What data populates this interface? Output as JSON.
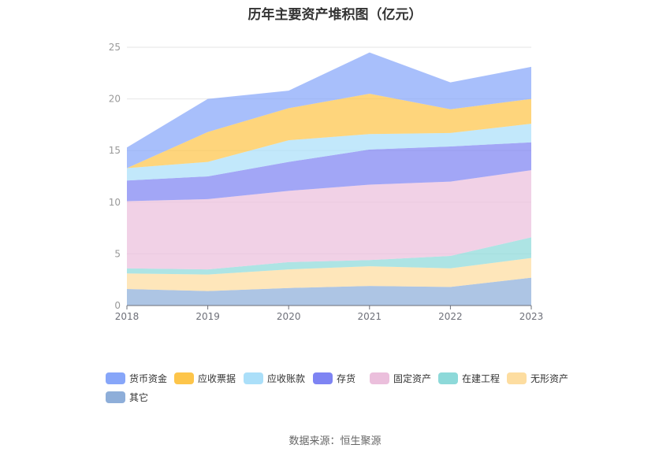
{
  "title": "历年主要资产堆积图（亿元）",
  "source": "数据来源：恒生聚源",
  "chart_data": {
    "type": "area",
    "stacked": true,
    "categories": [
      "2018",
      "2019",
      "2020",
      "2021",
      "2022",
      "2023"
    ],
    "ylim": [
      0,
      25
    ],
    "yticks": [
      0,
      5,
      10,
      15,
      20,
      25
    ],
    "grid": true,
    "legend_position": "bottom",
    "series": [
      {
        "name": "其它",
        "color": "#8eaed9",
        "values": [
          1.6,
          1.4,
          1.7,
          1.9,
          1.8,
          2.7
        ]
      },
      {
        "name": "无形资产",
        "color": "#fddda0",
        "values": [
          1.5,
          1.6,
          1.8,
          1.9,
          1.8,
          1.9
        ]
      },
      {
        "name": "在建工程",
        "color": "#8dd9d9",
        "values": [
          0.5,
          0.5,
          0.7,
          0.6,
          1.2,
          2.0
        ]
      },
      {
        "name": "固定资产",
        "color": "#ebbfdc",
        "values": [
          6.5,
          6.8,
          6.9,
          7.3,
          7.2,
          6.5
        ]
      },
      {
        "name": "存货",
        "color": "#7e84f3",
        "values": [
          2.0,
          2.2,
          2.8,
          3.4,
          3.4,
          2.7
        ]
      },
      {
        "name": "应收账款",
        "color": "#abdff9",
        "values": [
          1.2,
          1.4,
          2.1,
          1.5,
          1.3,
          1.8
        ]
      },
      {
        "name": "应收票据",
        "color": "#fdc54a",
        "values": [
          0.0,
          2.9,
          3.1,
          3.9,
          2.3,
          2.4
        ]
      },
      {
        "name": "货币资金",
        "color": "#87a6f9",
        "values": [
          2.0,
          3.2,
          1.7,
          4.0,
          2.6,
          3.1
        ]
      }
    ]
  },
  "legend_order": [
    "货币资金",
    "应收票据",
    "应收账款",
    "存货",
    "固定资产",
    "在建工程",
    "无形资产",
    "其它"
  ]
}
